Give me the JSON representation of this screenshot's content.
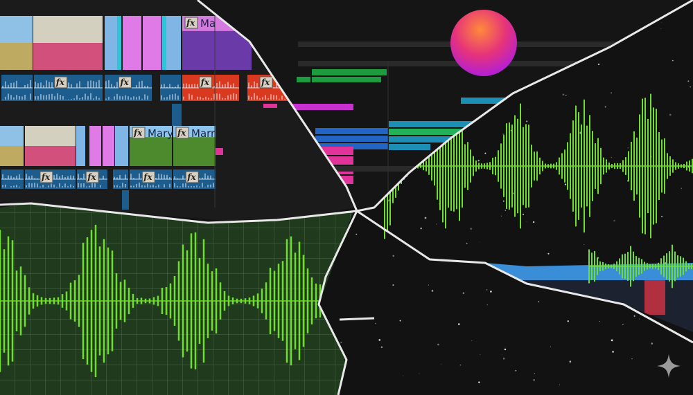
{
  "timeline": {
    "effect_badge": "fx",
    "clip_titles": [
      "Ma",
      "Mary",
      "Marr"
    ]
  },
  "colors": {
    "background": "#121213",
    "waveform": "#6ee02c",
    "grid_panel": "#1f3a1c",
    "audio_clip": "#1c5d8e",
    "audio_clip_alt": "#d8391f",
    "pink_clip": "#e07ae6",
    "magenta_bar": "#e2339b",
    "green_bar": "#1e9b3f",
    "blue_bar": "#2365c4",
    "teal_bar": "#1d8fb4",
    "sphere_top": "#ff6a2b",
    "sphere_bottom": "#c222d8",
    "crack": "#e8e8e8"
  },
  "icons": [
    "fx-badge-icon",
    "sparkle-icon"
  ]
}
